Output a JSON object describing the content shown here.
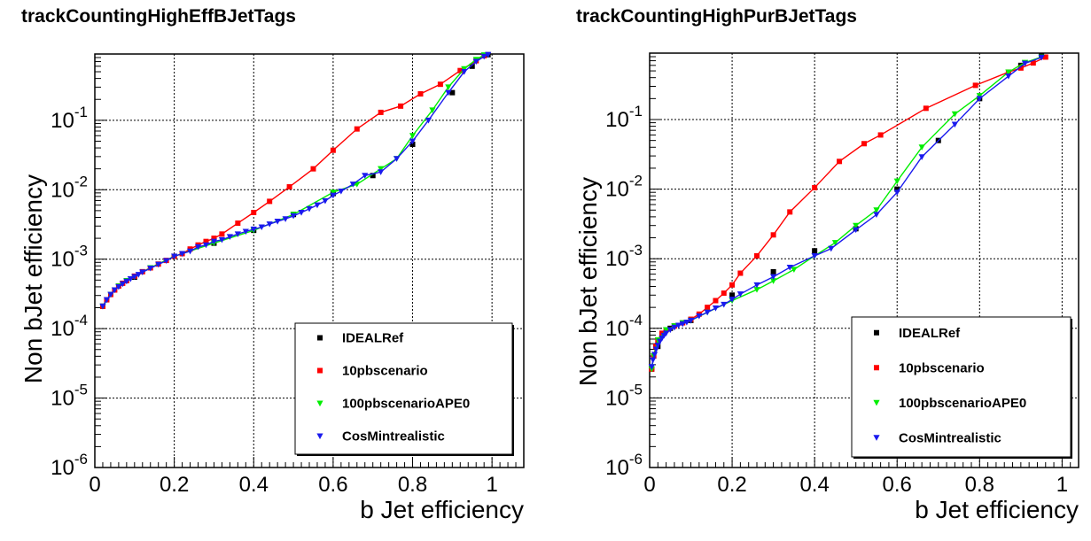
{
  "chart_data": [
    {
      "type": "line",
      "title": "trackCountingHighEffBJetTags",
      "xlabel": "b Jet efficiency",
      "ylabel": "Non bJet efficiency",
      "xlim": [
        0,
        1.08
      ],
      "ylim": [
        1e-06,
        0.9
      ],
      "yscale": "log",
      "grid": true,
      "legend_position": "bottom-right",
      "xticks": [
        "0",
        "0.2",
        "0.4",
        "0.6",
        "0.8",
        "1"
      ],
      "yticks": [
        {
          "base": "10",
          "exp": "-6",
          "value": 1e-06
        },
        {
          "base": "10",
          "exp": "-5",
          "value": 1e-05
        },
        {
          "base": "10",
          "exp": "-4",
          "value": 0.0001
        },
        {
          "base": "10",
          "exp": "-3",
          "value": 0.001
        },
        {
          "base": "10",
          "exp": "-2",
          "value": 0.01
        },
        {
          "base": "10",
          "exp": "-1",
          "value": 0.1
        }
      ],
      "series": [
        {
          "name": "IDEALRef",
          "color": "#000000",
          "marker": "square",
          "draw_line": false,
          "x": [
            0.02,
            0.1,
            0.2,
            0.3,
            0.4,
            0.5,
            0.6,
            0.7,
            0.8,
            0.9,
            0.95,
            0.99
          ],
          "y": [
            0.00021,
            0.00055,
            0.0011,
            0.0017,
            0.0026,
            0.0044,
            0.0088,
            0.016,
            0.045,
            0.25,
            0.6,
            0.88
          ]
        },
        {
          "name": "10pbscenario",
          "color": "#ff0000",
          "marker": "square",
          "draw_line": true,
          "x": [
            0.02,
            0.03,
            0.04,
            0.05,
            0.06,
            0.07,
            0.08,
            0.1,
            0.12,
            0.14,
            0.16,
            0.18,
            0.2,
            0.22,
            0.24,
            0.26,
            0.28,
            0.3,
            0.32,
            0.36,
            0.4,
            0.44,
            0.49,
            0.55,
            0.6,
            0.66,
            0.72,
            0.77,
            0.82,
            0.87,
            0.92,
            0.96,
            0.98
          ],
          "y": [
            0.00021,
            0.00026,
            0.00031,
            0.00036,
            0.00041,
            0.00045,
            0.00049,
            0.00057,
            0.00066,
            0.00075,
            0.00085,
            0.00096,
            0.0011,
            0.0012,
            0.0014,
            0.0016,
            0.0018,
            0.002,
            0.0023,
            0.0033,
            0.0047,
            0.0068,
            0.011,
            0.02,
            0.037,
            0.075,
            0.13,
            0.16,
            0.24,
            0.33,
            0.52,
            0.72,
            0.85
          ]
        },
        {
          "name": "100pbscenarioAPE0",
          "color": "#00ee00",
          "marker": "triangle-down",
          "draw_line": true,
          "x": [
            0.02,
            0.04,
            0.06,
            0.08,
            0.1,
            0.14,
            0.2,
            0.3,
            0.4,
            0.5,
            0.6,
            0.66,
            0.72,
            0.76,
            0.8,
            0.85,
            0.89,
            0.93,
            0.96,
            0.98
          ],
          "y": [
            0.00021,
            0.00031,
            0.00041,
            0.00049,
            0.00056,
            0.00075,
            0.0011,
            0.0017,
            0.0026,
            0.0044,
            0.0092,
            0.012,
            0.02,
            0.028,
            0.06,
            0.14,
            0.3,
            0.55,
            0.75,
            0.87
          ]
        },
        {
          "name": "CosMintrealistic",
          "color": "#1a1aee",
          "marker": "triangle-down",
          "draw_line": true,
          "x": [
            0.02,
            0.03,
            0.04,
            0.05,
            0.06,
            0.07,
            0.08,
            0.09,
            0.1,
            0.11,
            0.12,
            0.14,
            0.16,
            0.18,
            0.2,
            0.22,
            0.24,
            0.26,
            0.28,
            0.3,
            0.32,
            0.34,
            0.36,
            0.38,
            0.4,
            0.42,
            0.44,
            0.46,
            0.48,
            0.5,
            0.52,
            0.54,
            0.56,
            0.58,
            0.6,
            0.62,
            0.65,
            0.68,
            0.72,
            0.76,
            0.8,
            0.84,
            0.89,
            0.93,
            0.96,
            0.98,
            0.99
          ],
          "y": [
            0.00021,
            0.00026,
            0.00031,
            0.00036,
            0.0004,
            0.00044,
            0.00048,
            0.00052,
            0.00056,
            0.0006,
            0.00065,
            0.00074,
            0.00084,
            0.00095,
            0.0011,
            0.0012,
            0.0013,
            0.0015,
            0.0016,
            0.0018,
            0.0019,
            0.0021,
            0.0023,
            0.0025,
            0.0027,
            0.0029,
            0.0032,
            0.0035,
            0.0038,
            0.0042,
            0.0047,
            0.0053,
            0.006,
            0.0069,
            0.0083,
            0.0095,
            0.012,
            0.016,
            0.018,
            0.028,
            0.05,
            0.1,
            0.25,
            0.5,
            0.7,
            0.83,
            0.88
          ]
        }
      ]
    },
    {
      "type": "line",
      "title": "trackCountingHighPurBJetTags",
      "xlabel": "b Jet efficiency",
      "ylabel": "Non bJet efficiency",
      "xlim": [
        0,
        1.04
      ],
      "ylim": [
        1e-06,
        0.9
      ],
      "yscale": "log",
      "grid": true,
      "legend_position": "bottom-right",
      "xticks": [
        "0",
        "0.2",
        "0.4",
        "0.6",
        "0.8",
        "1"
      ],
      "yticks": [
        {
          "base": "10",
          "exp": "-6",
          "value": 1e-06
        },
        {
          "base": "10",
          "exp": "-5",
          "value": 1e-05
        },
        {
          "base": "10",
          "exp": "-4",
          "value": 0.0001
        },
        {
          "base": "10",
          "exp": "-3",
          "value": 0.001
        },
        {
          "base": "10",
          "exp": "-2",
          "value": 0.01
        },
        {
          "base": "10",
          "exp": "-1",
          "value": 0.1
        }
      ],
      "series": [
        {
          "name": "IDEALRef",
          "color": "#000000",
          "marker": "square",
          "draw_line": false,
          "x": [
            0.005,
            0.02,
            0.05,
            0.1,
            0.2,
            0.3,
            0.4,
            0.5,
            0.6,
            0.7,
            0.8,
            0.9,
            0.95
          ],
          "y": [
            2.6e-05,
            5.5e-05,
            0.0001,
            0.00013,
            0.0003,
            0.00065,
            0.0013,
            0.0027,
            0.01,
            0.05,
            0.2,
            0.6,
            0.82
          ]
        },
        {
          "name": "10pbscenario",
          "color": "#ff0000",
          "marker": "square",
          "draw_line": true,
          "x": [
            0.005,
            0.01,
            0.015,
            0.02,
            0.03,
            0.04,
            0.06,
            0.08,
            0.1,
            0.12,
            0.14,
            0.16,
            0.18,
            0.2,
            0.22,
            0.26,
            0.3,
            0.34,
            0.4,
            0.46,
            0.52,
            0.56,
            0.67,
            0.79,
            0.87,
            0.9,
            0.93,
            0.96
          ],
          "y": [
            2.6e-05,
            4e-05,
            5.5e-05,
            6.8e-05,
            8.5e-05,
            9.5e-05,
            0.000108,
            0.00012,
            0.000135,
            0.00016,
            0.0002,
            0.00025,
            0.00032,
            0.00042,
            0.00062,
            0.0011,
            0.0022,
            0.0047,
            0.0105,
            0.025,
            0.045,
            0.06,
            0.145,
            0.31,
            0.48,
            0.55,
            0.65,
            0.79
          ]
        },
        {
          "name": "100pbscenarioAPE0",
          "color": "#00ee00",
          "marker": "triangle-down",
          "draw_line": true,
          "x": [
            0.005,
            0.01,
            0.02,
            0.04,
            0.06,
            0.08,
            0.1,
            0.14,
            0.2,
            0.26,
            0.3,
            0.35,
            0.4,
            0.45,
            0.5,
            0.55,
            0.6,
            0.66,
            0.74,
            0.8,
            0.87,
            0.91,
            0.95
          ],
          "y": [
            2.6e-05,
            4e-05,
            6.8e-05,
            9.5e-05,
            0.000108,
            0.00012,
            0.00013,
            0.00017,
            0.00025,
            0.00036,
            0.00048,
            0.0007,
            0.0011,
            0.0017,
            0.003,
            0.005,
            0.013,
            0.04,
            0.12,
            0.22,
            0.48,
            0.66,
            0.79
          ]
        },
        {
          "name": "CosMintrealistic",
          "color": "#1a1aee",
          "marker": "triangle-down",
          "draw_line": true,
          "x": [
            0.005,
            0.008,
            0.012,
            0.016,
            0.02,
            0.025,
            0.03,
            0.035,
            0.04,
            0.05,
            0.06,
            0.07,
            0.08,
            0.09,
            0.1,
            0.12,
            0.14,
            0.16,
            0.18,
            0.2,
            0.22,
            0.26,
            0.3,
            0.34,
            0.4,
            0.44,
            0.5,
            0.55,
            0.6,
            0.66,
            0.74,
            0.8,
            0.87,
            0.91,
            0.95
          ],
          "y": [
            2.8e-05,
            3.5e-05,
            4.2e-05,
            5e-05,
            5.7e-05,
            6.5e-05,
            7.2e-05,
            7.9e-05,
            8.5e-05,
            9.5e-05,
            0.000103,
            0.00011,
            0.000116,
            0.000122,
            0.00013,
            0.00015,
            0.00017,
            0.000195,
            0.00022,
            0.00026,
            0.00031,
            0.00042,
            0.00055,
            0.00075,
            0.0011,
            0.0014,
            0.0026,
            0.0043,
            0.009,
            0.029,
            0.085,
            0.2,
            0.42,
            0.64,
            0.78
          ]
        }
      ]
    }
  ]
}
